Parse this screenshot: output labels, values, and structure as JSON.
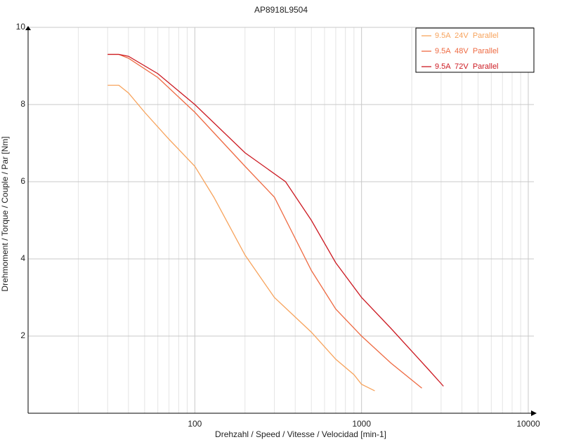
{
  "chart_data": {
    "type": "line",
    "title": "AP8918L9504",
    "x_label": "Drehzahl / Speed / Vitesse / Velocidad [min-1]",
    "y_label": "Drehmoment / Torque / Couple / Par [Nm]",
    "xscale": "log",
    "xlim": [
      10,
      10000
    ],
    "xticks": [
      100,
      1000,
      10000
    ],
    "ylim": [
      0,
      10
    ],
    "yticks": [
      2,
      4,
      6,
      8,
      10
    ],
    "grid": true,
    "legend": "upper right",
    "series": [
      {
        "name": "9.5A  24V  Parallel",
        "color": "#f7a35c",
        "x": [
          30,
          35,
          40,
          50,
          70,
          100,
          130,
          200,
          300,
          500,
          700,
          900,
          1000,
          1200
        ],
        "values": [
          8.5,
          8.5,
          8.3,
          7.8,
          7.1,
          6.4,
          5.6,
          4.1,
          3.0,
          2.1,
          1.4,
          1.0,
          0.75,
          0.58
        ]
      },
      {
        "name": "9.5A  48V  Parallel",
        "color": "#ee6a42",
        "x": [
          30,
          35,
          40,
          60,
          100,
          200,
          300,
          500,
          700,
          1000,
          1500,
          2300
        ],
        "values": [
          9.3,
          9.3,
          9.2,
          8.7,
          7.8,
          6.4,
          5.6,
          3.7,
          2.7,
          2.0,
          1.3,
          0.65
        ]
      },
      {
        "name": "9.5A  72V  Parallel",
        "color": "#cc1a22",
        "x": [
          30,
          35,
          40,
          60,
          100,
          200,
          350,
          500,
          700,
          1000,
          1500,
          2500,
          3100
        ],
        "values": [
          9.3,
          9.3,
          9.25,
          8.8,
          8.0,
          6.75,
          6.0,
          5.0,
          3.9,
          3.0,
          2.2,
          1.15,
          0.7
        ]
      }
    ]
  }
}
